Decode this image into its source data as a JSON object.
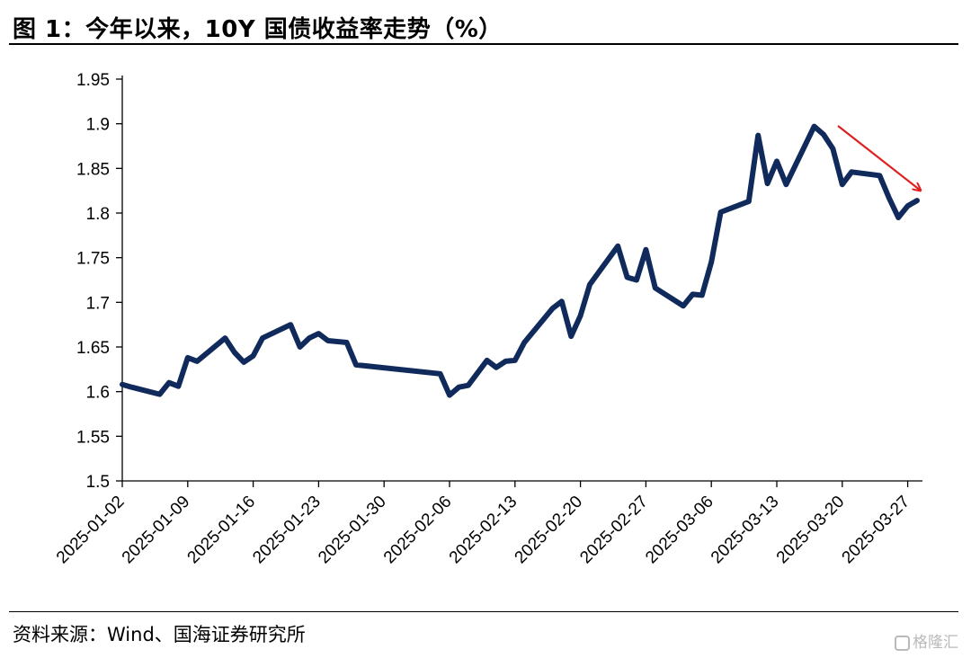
{
  "figure": {
    "title": "图 1：今年以来，10Y 国债收益率走势（%）",
    "source": "资料来源：Wind、国海证券研究所",
    "watermark": "格隆汇"
  },
  "chart_data": {
    "type": "line",
    "title": "图 1：今年以来，10Y 国债收益率走势（%）",
    "xlabel": "",
    "ylabel": "",
    "ylim": [
      1.5,
      1.95
    ],
    "y_ticks": [
      "1.5",
      "1.55",
      "1.6",
      "1.65",
      "1.7",
      "1.75",
      "1.8",
      "1.85",
      "1.9",
      "1.95"
    ],
    "x_ticks": [
      "2025-01-02",
      "2025-01-09",
      "2025-01-16",
      "2025-01-23",
      "2025-01-30",
      "2025-02-06",
      "2025-02-13",
      "2025-02-20",
      "2025-02-27",
      "2025-03-06",
      "2025-03-13",
      "2025-03-20",
      "2025-03-27"
    ],
    "grid": false,
    "legend": "none",
    "line_color": "#102a5c",
    "annotation": {
      "type": "arrow",
      "direction": "down",
      "color": "#e02020"
    },
    "series": [
      {
        "x": [
          "2025-01-02",
          "2025-01-03",
          "2025-01-06",
          "2025-01-07",
          "2025-01-08",
          "2025-01-09",
          "2025-01-10",
          "2025-01-13",
          "2025-01-14",
          "2025-01-15",
          "2025-01-16",
          "2025-01-17",
          "2025-01-20",
          "2025-01-21",
          "2025-01-22",
          "2025-01-23",
          "2025-01-24",
          "2025-01-26",
          "2025-01-27",
          "2025-02-05",
          "2025-02-06",
          "2025-02-07",
          "2025-02-08",
          "2025-02-10",
          "2025-02-11",
          "2025-02-12",
          "2025-02-13",
          "2025-02-14",
          "2025-02-17",
          "2025-02-18",
          "2025-02-19",
          "2025-02-20",
          "2025-02-21",
          "2025-02-24",
          "2025-02-25",
          "2025-02-26",
          "2025-02-27",
          "2025-02-28",
          "2025-03-03",
          "2025-03-04",
          "2025-03-05",
          "2025-03-06",
          "2025-03-07",
          "2025-03-10",
          "2025-03-11",
          "2025-03-12",
          "2025-03-13",
          "2025-03-14",
          "2025-03-17",
          "2025-03-18",
          "2025-03-19",
          "2025-03-20",
          "2025-03-21",
          "2025-03-24",
          "2025-03-25",
          "2025-03-26",
          "2025-03-27",
          "2025-03-28"
        ],
        "values": [
          1.608,
          1.605,
          1.597,
          1.61,
          1.606,
          1.638,
          1.634,
          1.66,
          1.644,
          1.633,
          1.64,
          1.66,
          1.675,
          1.65,
          1.66,
          1.665,
          1.657,
          1.655,
          1.63,
          1.62,
          1.596,
          1.605,
          1.607,
          1.635,
          1.627,
          1.634,
          1.635,
          1.655,
          1.693,
          1.701,
          1.662,
          1.685,
          1.72,
          1.763,
          1.728,
          1.725,
          1.759,
          1.716,
          1.696,
          1.709,
          1.708,
          1.745,
          1.801,
          1.813,
          1.887,
          1.833,
          1.858,
          1.832,
          1.897,
          1.888,
          1.872,
          1.832,
          1.846,
          1.842,
          1.817,
          1.795,
          1.808,
          1.814
        ]
      }
    ]
  }
}
